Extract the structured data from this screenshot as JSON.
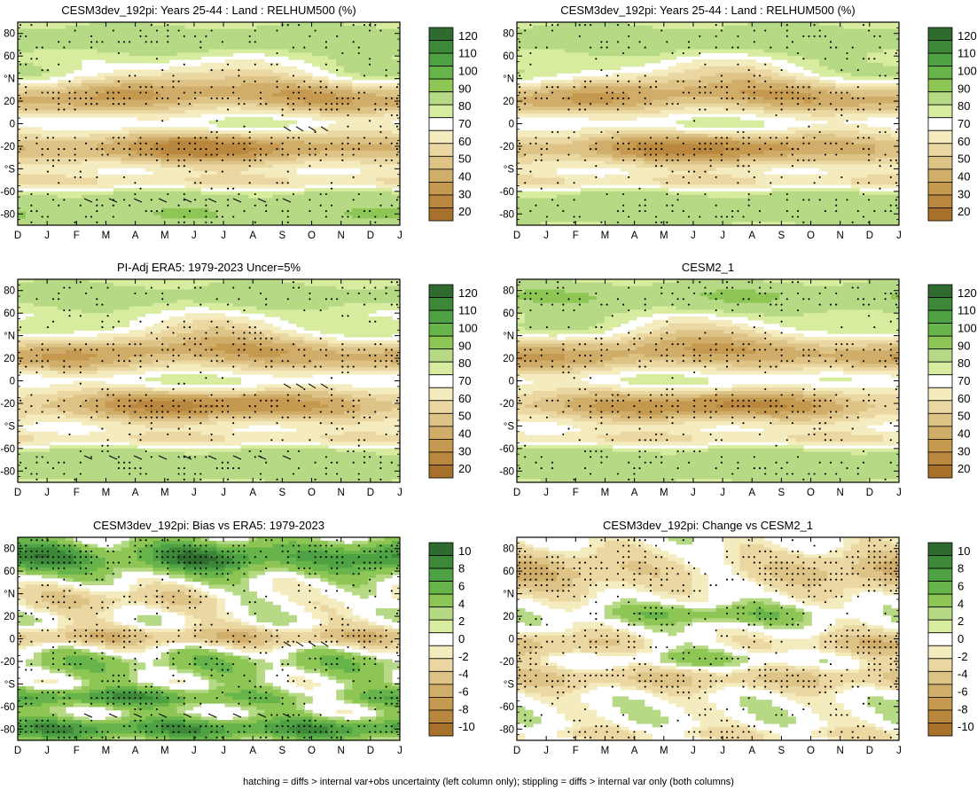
{
  "footer_note": "hatching = diffs > internal var+obs uncertainty (left column only); stippling = diffs > internal var only (both columns)",
  "colors": {
    "brown_dark": "#a8712b",
    "white": "#ffffff",
    "green_dark": "#2f6a2f"
  },
  "chart_data": [
    {
      "type": "heatmap",
      "title": "CESM3dev_192pi: Years 25-44 : Land : RELHUM500 (%)",
      "x_tick_labels": [
        "D",
        "J",
        "F",
        "M",
        "A",
        "M",
        "J",
        "J",
        "A",
        "S",
        "O",
        "N",
        "D",
        "J"
      ],
      "y_tick_labels": [
        "80",
        "60",
        "°N",
        "20",
        "0",
        "-20",
        "°S",
        "-60",
        "-80"
      ],
      "y_tick_values": [
        80,
        60,
        40,
        20,
        0,
        -20,
        -40,
        -60,
        -80
      ],
      "ylim": [
        -90,
        90
      ],
      "colorbar": {
        "levels": [
          "120",
          "110",
          "100",
          "90",
          "80",
          "70",
          "60",
          "50",
          "40",
          "30",
          "20"
        ]
      },
      "field": "abs",
      "variant": 0,
      "stipple": true,
      "hatch": true
    },
    {
      "type": "heatmap",
      "title": "CESM3dev_192pi: Years 25-44 : Land : RELHUM500 (%)",
      "x_tick_labels": [
        "D",
        "J",
        "F",
        "M",
        "A",
        "M",
        "J",
        "J",
        "A",
        "S",
        "O",
        "N",
        "D",
        "J"
      ],
      "y_tick_labels": [
        "80",
        "60",
        "°N",
        "20",
        "0",
        "-20",
        "°S",
        "-60",
        "-80"
      ],
      "y_tick_values": [
        80,
        60,
        40,
        20,
        0,
        -20,
        -40,
        -60,
        -80
      ],
      "ylim": [
        -90,
        90
      ],
      "colorbar": {
        "levels": [
          "120",
          "110",
          "100",
          "90",
          "80",
          "70",
          "60",
          "50",
          "40",
          "30",
          "20"
        ]
      },
      "field": "abs",
      "variant": 1,
      "stipple": true,
      "hatch": false
    },
    {
      "type": "heatmap",
      "title": "PI-Adj ERA5: 1979-2023 Uncer=5%",
      "x_tick_labels": [
        "D",
        "J",
        "F",
        "M",
        "A",
        "M",
        "J",
        "J",
        "A",
        "S",
        "O",
        "N",
        "D",
        "J"
      ],
      "y_tick_labels": [
        "80",
        "60",
        "°N",
        "20",
        "0",
        "-20",
        "°S",
        "-60",
        "-80"
      ],
      "y_tick_values": [
        80,
        60,
        40,
        20,
        0,
        -20,
        -40,
        -60,
        -80
      ],
      "ylim": [
        -90,
        90
      ],
      "colorbar": {
        "levels": [
          "120",
          "110",
          "100",
          "90",
          "80",
          "70",
          "60",
          "50",
          "40",
          "30",
          "20"
        ]
      },
      "field": "abs",
      "variant": 2,
      "stipple": true,
      "hatch": true
    },
    {
      "type": "heatmap",
      "title": "CESM2_1",
      "x_tick_labels": [
        "D",
        "J",
        "F",
        "M",
        "A",
        "M",
        "J",
        "J",
        "A",
        "S",
        "O",
        "N",
        "D",
        "J"
      ],
      "y_tick_labels": [
        "80",
        "60",
        "°N",
        "20",
        "0",
        "-20",
        "°S",
        "-60",
        "-80"
      ],
      "y_tick_values": [
        80,
        60,
        40,
        20,
        0,
        -20,
        -40,
        -60,
        -80
      ],
      "ylim": [
        -90,
        90
      ],
      "colorbar": {
        "levels": [
          "120",
          "110",
          "100",
          "90",
          "80",
          "70",
          "60",
          "50",
          "40",
          "30",
          "20"
        ]
      },
      "field": "abs",
      "variant": 3,
      "stipple": true,
      "hatch": false
    },
    {
      "type": "heatmap",
      "title": "CESM3dev_192pi: Bias vs ERA5: 1979-2023",
      "x_tick_labels": [
        "D",
        "J",
        "F",
        "M",
        "A",
        "M",
        "J",
        "J",
        "A",
        "S",
        "O",
        "N",
        "D",
        "J"
      ],
      "y_tick_labels": [
        "80",
        "60",
        "°N",
        "20",
        "0",
        "-20",
        "°S",
        "-60",
        "-80"
      ],
      "y_tick_values": [
        80,
        60,
        40,
        20,
        0,
        -20,
        -40,
        -60,
        -80
      ],
      "ylim": [
        -90,
        90
      ],
      "colorbar": {
        "levels": [
          "10",
          "8",
          "6",
          "4",
          "2",
          "0",
          "-2",
          "-4",
          "-6",
          "-8",
          "-10"
        ]
      },
      "field": "bias",
      "variant": 0,
      "stipple": true,
      "hatch": true
    },
    {
      "type": "heatmap",
      "title": "CESM3dev_192pi: Change vs CESM2_1",
      "x_tick_labels": [
        "D",
        "J",
        "F",
        "M",
        "A",
        "M",
        "J",
        "J",
        "A",
        "S",
        "O",
        "N",
        "D",
        "J"
      ],
      "y_tick_labels": [
        "80",
        "60",
        "°N",
        "20",
        "0",
        "-20",
        "°S",
        "-60",
        "-80"
      ],
      "y_tick_values": [
        80,
        60,
        40,
        20,
        0,
        -20,
        -40,
        -60,
        -80
      ],
      "ylim": [
        -90,
        90
      ],
      "colorbar": {
        "levels": [
          "10",
          "8",
          "6",
          "4",
          "2",
          "0",
          "-2",
          "-4",
          "-6",
          "-8",
          "-10"
        ]
      },
      "field": "change",
      "variant": 0,
      "stipple": true,
      "hatch": false
    }
  ]
}
